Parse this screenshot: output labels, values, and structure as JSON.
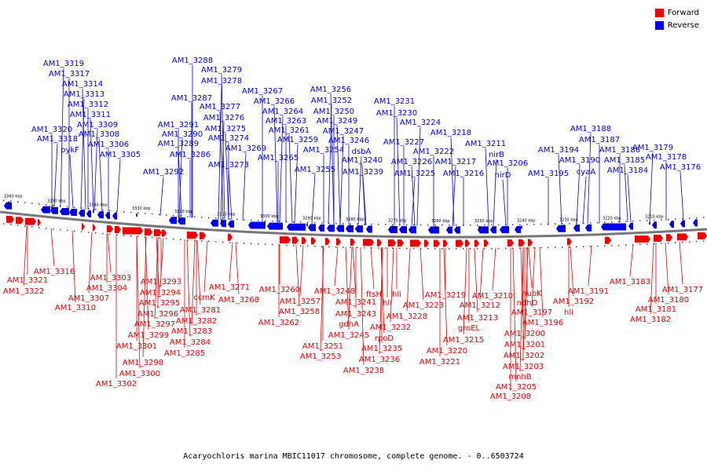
{
  "legend": {
    "forward_label": "Forward",
    "reverse_label": "Reverse",
    "forward_color": "#ee0000",
    "reverse_color": "#0000ee"
  },
  "caption": "Acaryochloris marina MBIC11017 chromosome, complete genome. - 0..6503724",
  "scale_labels": [
    "3360 kbp",
    "3350 kbp",
    "3340 kbp",
    "3330 kbp",
    "3320 kbp",
    "3310 kbp",
    "3300 kbp",
    "3290 kbp",
    "3280 kbp",
    "3270 kbp",
    "3260 kbp",
    "3250 kbp",
    "3240 kbp",
    "3230 kbp",
    "3220 kbp",
    "3210 kbp"
  ],
  "reverse_genes": [
    "AM1_3319",
    "AM1_3317",
    "AM1_3314",
    "AM1_3313",
    "AM1_3312",
    "AM1_3311",
    "AM1_3309",
    "AM1_3320",
    "AM1_3308",
    "AM1_3318",
    "AM1_3306",
    "pykF",
    "AM1_3305",
    "AM1_3288",
    "AM1_3279",
    "AM1_3278",
    "AM1_3287",
    "AM1_3277",
    "AM1_3276",
    "AM1_3291",
    "AM1_3275",
    "AM1_3290",
    "AM1_3274",
    "AM1_3289",
    "AM1_3269",
    "AM1_3286",
    "AM1_3273",
    "AM1_3292",
    "AM1_3267",
    "AM1_3266",
    "AM1_3264",
    "AM1_3263",
    "AM1_3261",
    "AM1_3259",
    "AM1_3265",
    "AM1_3256",
    "AM1_3252",
    "AM1_3250",
    "AM1_3249",
    "AM1_3247",
    "AM1_3246",
    "AM1_3240",
    "AM1_3255",
    "AM1_3254",
    "AM1_3239",
    "dsbA",
    "AM1_3231",
    "AM1_3230",
    "AM1_3224",
    "AM1_3227",
    "AM1_3226",
    "AM1_3225",
    "AM1_3222",
    "AM1_3218",
    "AM1_3217",
    "AM1_3216",
    "AM1_3211",
    "nirB",
    "AM1_3206",
    "nirD",
    "AM1_3188",
    "AM1_3187",
    "AM1_3194",
    "AM1_3190",
    "AM1_3186",
    "AM1_3185",
    "cyaA",
    "AM1_3195",
    "AM1_3184",
    "AM1_3179",
    "AM1_3178",
    "AM1_3176"
  ],
  "forward_genes": [
    "AM1_3316",
    "AM1_3321",
    "AM1_3322",
    "AM1_3303",
    "AM1_3304",
    "AM1_3307",
    "AM1_3310",
    "AM1_3293",
    "AM1_3294",
    "AM1_3295",
    "AM1_3296",
    "AM1_3297",
    "AM1_3299",
    "AM1_3301",
    "AM1_3298",
    "AM1_3300",
    "AM1_3302",
    "ccmK",
    "AM1_3281",
    "AM1_3282",
    "AM1_3283",
    "AM1_3284",
    "AM1_3285",
    "AM1_3271",
    "AM1_3268",
    "AM1_3260",
    "AM1_3257",
    "AM1_3258",
    "AM1_3262",
    "AM1_3248",
    "AM1_3241",
    "AM1_3243",
    "gdhA",
    "AM1_3245",
    "AM1_3251",
    "AM1_3253",
    "ftsH",
    "hli",
    "AM1_3232",
    "rpoD",
    "AM1_3235",
    "AM1_3236",
    "AM1_3238",
    "hli",
    "AM1_3228",
    "AM1_3223",
    "AM1_3219",
    "AM1_3212",
    "AM1_3213",
    "groEL",
    "AM1_3215",
    "AM1_3220",
    "AM1_3221",
    "AM1_3210",
    "nuoK",
    "ndhD",
    "AM1_3197",
    "AM1_3196",
    "AM1_3200",
    "AM1_3201",
    "AM1_3202",
    "AM1_3203",
    "mnhB",
    "AM1_3205",
    "AM1_3208",
    "AM1_3191",
    "AM1_3192",
    "hli",
    "AM1_3183",
    "AM1_3180",
    "AM1_3181",
    "AM1_3182",
    "AM1_3177"
  ]
}
